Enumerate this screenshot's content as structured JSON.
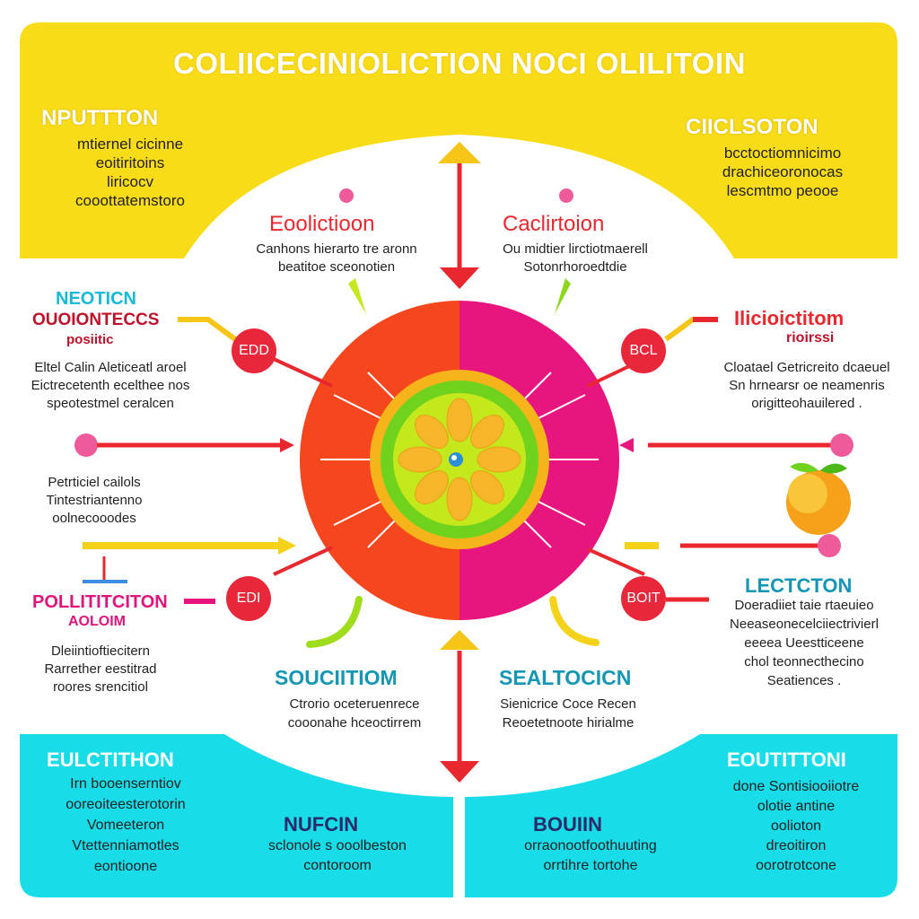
{
  "title": "COLIICECINIOLICTION NOCI OLILITOIN",
  "colors": {
    "yellow": "#f9dc18",
    "cyan": "#19dce9",
    "red": "#e8272e",
    "magenta": "#e8157f",
    "orange": "#f5461e",
    "green": "#6fd21c"
  },
  "top_left": {
    "heading": "NPUTTTON",
    "lines": [
      "mtiernel cicinne",
      "eoitiritoins",
      "liricocv",
      "cooottatemstoro"
    ]
  },
  "top_right": {
    "heading": "CIICLSOTON",
    "lines": [
      "bcctoctiomnicimo",
      "drachiceoronocas",
      "lescmtmo peooe"
    ]
  },
  "upper_left_label": {
    "heading": "Eoolictioon",
    "lines": [
      "Canhons hierarto tre aronn",
      "beatitoe sceonotien"
    ]
  },
  "upper_right_label": {
    "heading": "Caclirtoion",
    "lines": [
      "Ou midtier lirctiotmaerell",
      "Sotonrhoroedtdie"
    ]
  },
  "left_mid": {
    "heading": "NEOTICN",
    "subheading": "OUOIONTECCS",
    "small": "posiitic",
    "lines": [
      "Eltel Calin Aleticeatl aroel",
      "Eictrecetenth ecelthee nos",
      "speotestmel ceralcen"
    ]
  },
  "left_lower": {
    "lines": [
      "Petrticiel cailols",
      "Tintestriantenno",
      "oolnecooodes"
    ]
  },
  "left_bottom": {
    "heading": "POLLITITCITON",
    "subheading": "AOLOIM",
    "lines": [
      "Dleiintioftiecitern",
      "Rarrether eestitrad",
      "roores srencitiol"
    ]
  },
  "right_mid": {
    "heading": "Ilicioictitom",
    "subheading": "rioirssi",
    "lines": [
      "Cloatael Getricreito dcaeuel",
      "Sn hrnearsr oe neamenris",
      "origitteohauilered ."
    ]
  },
  "right_bottom": {
    "heading": "LECTCTON",
    "lines": [
      "Doeradiiet taie rtaeuieo",
      "Neeaseonecelciiectrivierl",
      "eeeea Ueestticeene",
      "chol teonnecthecino",
      "Seatiences ."
    ]
  },
  "lower_left_label": {
    "heading": "SOUCIITIOM",
    "lines": [
      "Ctrorio oceteruenrece",
      "cooonahe hceoctirrem"
    ]
  },
  "lower_right_label": {
    "heading": "SEALTOCICN",
    "lines": [
      "Sienicrice  Coce Recen",
      "Reoetetnoote hirialme"
    ]
  },
  "bottom_left": {
    "heading": "EULCTITHON",
    "lines": [
      "Irn booenserntiov",
      "ooreoiteesterotorin",
      "Vomeeteron",
      "Vtettenniamotles",
      "eontioone"
    ]
  },
  "bottom_center_left": {
    "heading": "NUFCIN",
    "lines": [
      "sclonole s ooolbeston",
      "contoroom"
    ]
  },
  "bottom_center_right": {
    "heading": "BOUIIN",
    "lines": [
      "orraonootfoothuuting",
      "orrtihre tortohe"
    ]
  },
  "bottom_right": {
    "heading": "EOUTITTONI",
    "lines": [
      "done Sontisiooiiotre",
      "olotie antine",
      "oolioton",
      "dreoitiron",
      "oorotrotcone"
    ]
  },
  "badges": {
    "left_upper": "EDD",
    "right_upper": "BCL",
    "left_lower": "EDI",
    "right_lower": "BOIT"
  }
}
